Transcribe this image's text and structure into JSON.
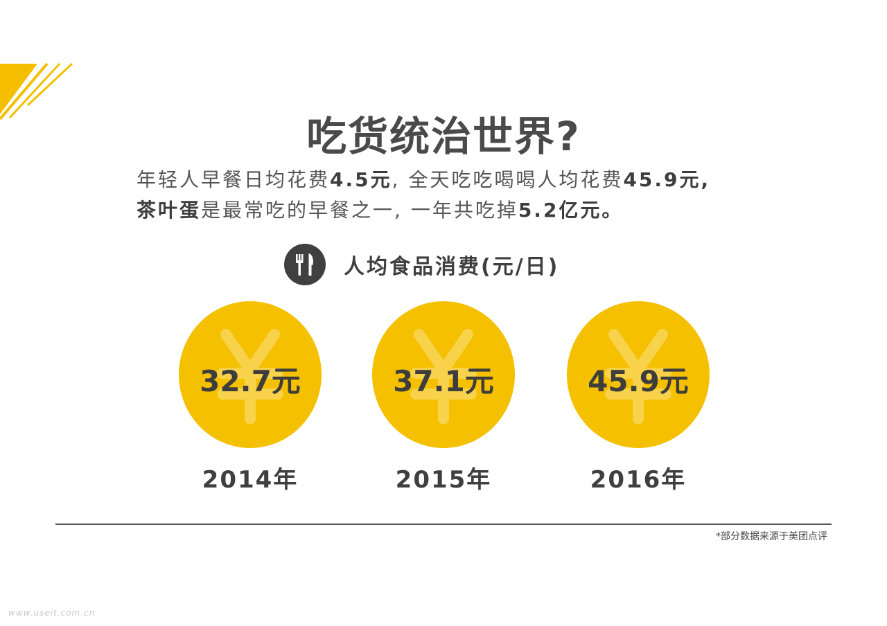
{
  "title": "吃货统治世界?",
  "subtitle": {
    "line1": [
      {
        "text": "年轻人早餐日均花费",
        "bold": false
      },
      {
        "text": "4.5元",
        "bold": true
      },
      {
        "text": ", 全天吃吃喝喝人均花费",
        "bold": false
      },
      {
        "text": "45.9元,",
        "bold": true
      }
    ],
    "line2": [
      {
        "text": "茶叶蛋",
        "bold": true
      },
      {
        "text": "是最常吃的早餐之一, 一年共吃掉",
        "bold": false
      },
      {
        "text": "5.2亿元。",
        "bold": true
      }
    ]
  },
  "section": {
    "icon": "fork-knife-icon",
    "label": "人均食品消费(元/日)"
  },
  "items": [
    {
      "value": "32.7元",
      "year": "2014年"
    },
    {
      "value": "37.1元",
      "year": "2015年"
    },
    {
      "value": "45.9元",
      "year": "2016年"
    }
  ],
  "coin_symbol": "yen-icon",
  "footnote": "*部分数据来源于美团点评",
  "watermark": "www.useit.com.cn",
  "colors": {
    "accent": "#f5bf00",
    "coin": "#f5c000",
    "coin_symbol": "#f7d24a",
    "text": "#3f3f3f",
    "icon_bg": "#404040"
  }
}
